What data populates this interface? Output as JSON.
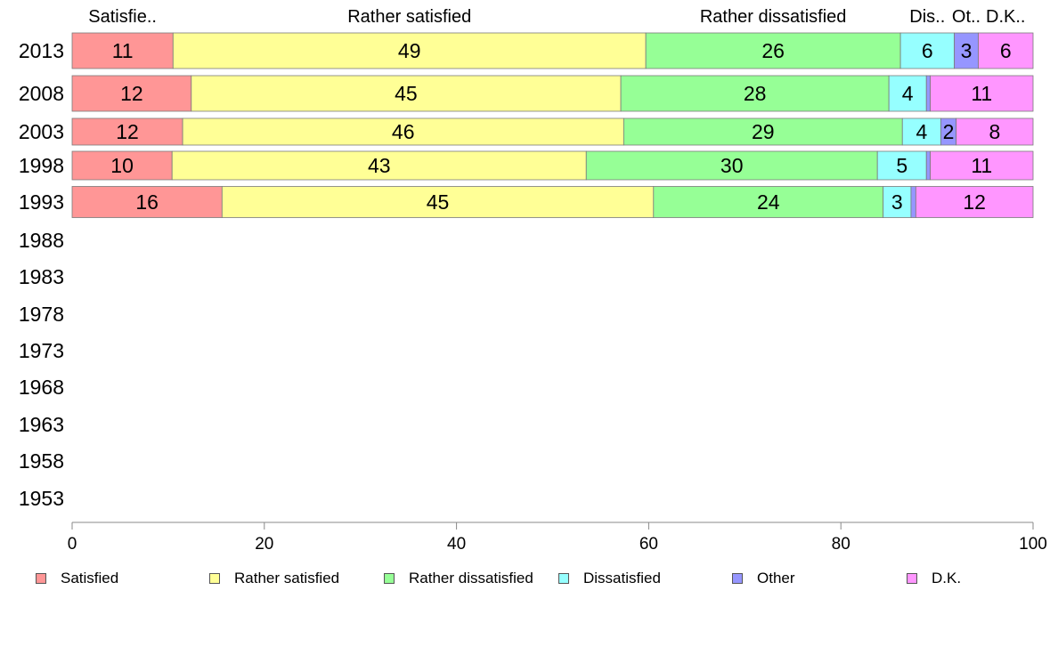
{
  "chart_data": {
    "type": "bar",
    "orientation": "horizontal",
    "stacked": true,
    "categories": [
      "2013",
      "2008",
      "2003",
      "1998",
      "1993",
      "1988",
      "1983",
      "1978",
      "1973",
      "1968",
      "1963",
      "1958",
      "1953"
    ],
    "series": [
      {
        "name": "Satisfied",
        "top_label": "Satisfie..",
        "color": "#ff9696",
        "values": [
          10.5,
          12.4,
          11.5,
          10.4,
          15.6,
          null,
          null,
          null,
          null,
          null,
          null,
          null,
          null
        ],
        "labels": [
          "11",
          "12",
          "12",
          "10",
          "16"
        ]
      },
      {
        "name": "Rather satisfied",
        "top_label": "Rather satisfied",
        "color": "#ffff96",
        "values": [
          49.2,
          44.7,
          45.9,
          43.1,
          44.9,
          null,
          null,
          null,
          null,
          null,
          null,
          null,
          null
        ],
        "labels": [
          "49",
          "45",
          "46",
          "43",
          "45"
        ]
      },
      {
        "name": "Rather dissatisfied",
        "top_label": "Rather dissatisfied",
        "color": "#96ff96",
        "values": [
          26.5,
          27.9,
          29.0,
          30.3,
          23.9,
          null,
          null,
          null,
          null,
          null,
          null,
          null,
          null
        ],
        "labels": [
          "26",
          "28",
          "29",
          "30",
          "24"
        ]
      },
      {
        "name": "Dissatisfied",
        "top_label": "Dis..",
        "color": "#96ffff",
        "values": [
          5.6,
          3.9,
          4.0,
          5.1,
          2.9,
          null,
          null,
          null,
          null,
          null,
          null,
          null,
          null
        ],
        "labels": [
          "6",
          "4",
          "4",
          "5",
          "3"
        ]
      },
      {
        "name": "Other",
        "top_label": "Ot..",
        "color": "#9696ff",
        "values": [
          2.5,
          0.4,
          1.6,
          0.4,
          0.5,
          null,
          null,
          null,
          null,
          null,
          null,
          null,
          null
        ],
        "labels": [
          "3",
          "",
          "2",
          "",
          ""
        ]
      },
      {
        "name": "D.K.",
        "top_label": "D.K..",
        "color": "#ff96ff",
        "values": [
          5.7,
          10.7,
          8.0,
          10.7,
          12.2,
          null,
          null,
          null,
          null,
          null,
          null,
          null,
          null
        ],
        "labels": [
          "6",
          "11",
          "8",
          "11",
          "12"
        ]
      }
    ],
    "xlim": [
      0,
      100
    ],
    "x_ticks": [
      "0",
      "20",
      "40",
      "60",
      "80",
      "100"
    ],
    "grid": false,
    "legend_position": "bottom"
  }
}
